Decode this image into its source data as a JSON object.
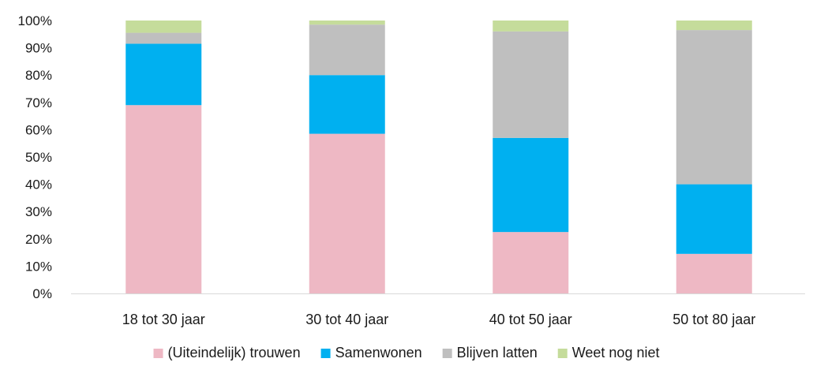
{
  "chart_data": {
    "type": "bar",
    "stacked": true,
    "percent": true,
    "categories": [
      "18 tot 30 jaar",
      "30 tot 40 jaar",
      "40 tot 50 jaar",
      "50 tot 80 jaar"
    ],
    "series": [
      {
        "name": "(Uiteindelijk) trouwen",
        "color": "#EEB8C4",
        "values": [
          69,
          58.5,
          22.5,
          14.5
        ]
      },
      {
        "name": "Samenwonen",
        "color": "#00B0F0",
        "values": [
          22.5,
          21.5,
          34.5,
          25.5
        ]
      },
      {
        "name": "Blijven latten",
        "color": "#BFBFBF",
        "values": [
          4,
          18.5,
          39,
          56.5
        ]
      },
      {
        "name": "Weet nog niet",
        "color": "#C5DC9B",
        "values": [
          4.5,
          1.5,
          4,
          3.5
        ]
      }
    ],
    "y_ticks": [
      "0%",
      "10%",
      "20%",
      "30%",
      "40%",
      "50%",
      "60%",
      "70%",
      "80%",
      "90%",
      "100%"
    ],
    "ylim": [
      0,
      100
    ],
    "title": "",
    "xlabel": "",
    "ylabel": "",
    "grid": false,
    "legend_position": "bottom"
  }
}
